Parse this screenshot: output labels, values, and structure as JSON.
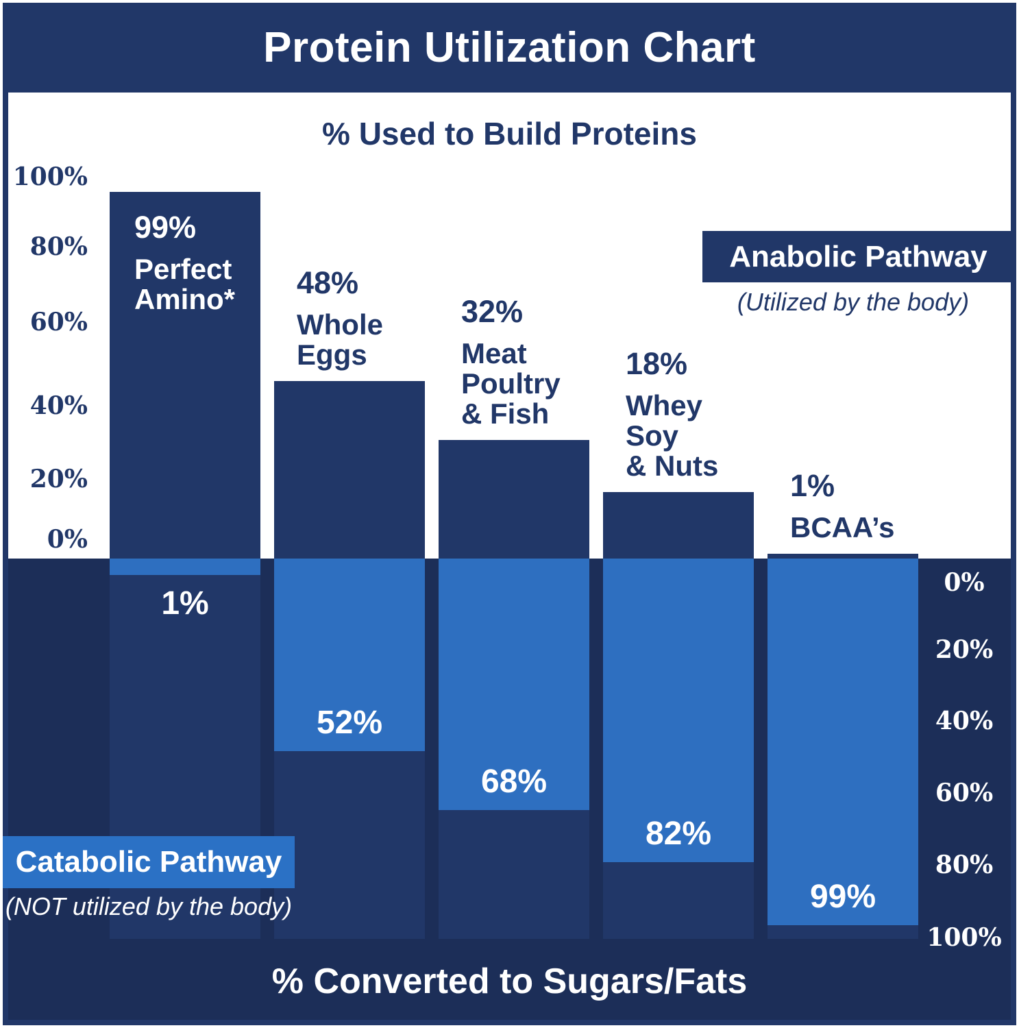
{
  "title": "Protein Utilization Chart",
  "top_axis_title": "% Used to Build Proteins",
  "bottom_axis_title": "% Converted to Sugars/Fats",
  "legend": {
    "anabolic": {
      "label": "Anabolic Pathway",
      "caption": "(Utilized by the body)"
    },
    "catabolic": {
      "label": "Catabolic Pathway",
      "caption": "(NOT utilized by the body)"
    }
  },
  "colors": {
    "navy": "#213768",
    "bottom_background_navy": "#1C2E58",
    "light_blue": "#2E6FC0",
    "catabolic_box_blue": "#2B71C5",
    "white": "#FFFFFF"
  },
  "chart_data": {
    "type": "bar",
    "subtype": "diverging-vertical",
    "title": "Protein Utilization Chart",
    "top_half_label": "% Used to Build Proteins",
    "bottom_half_label": "% Converted to Sugars/Fats",
    "grid": false,
    "categories": [
      "Perfect Amino*",
      "Whole Eggs",
      "Meat Poultry & Fish",
      "Whey Soy & Nuts",
      "BCAA’s"
    ],
    "series": [
      {
        "name": "Anabolic Pathway (Utilized by the body)",
        "values": [
          99,
          48,
          32,
          18,
          1
        ]
      },
      {
        "name": "Catabolic Pathway (NOT utilized by the body)",
        "values": [
          1,
          52,
          68,
          82,
          99
        ]
      }
    ],
    "top_axis": {
      "side": "left",
      "ticks": [
        "100%",
        "80%",
        "60%",
        "40%",
        "20%",
        "0%"
      ],
      "range": [
        0,
        100
      ]
    },
    "bottom_axis": {
      "side": "right",
      "ticks": [
        "0%",
        "20%",
        "40%",
        "60%",
        "80%",
        "100%"
      ],
      "range": [
        0,
        100
      ]
    },
    "columns": [
      {
        "pct_label": "99%",
        "name_lines": [
          "Perfect",
          "Amino*"
        ],
        "anabolic": 99,
        "catabolic": 1,
        "catabolic_label": "1%"
      },
      {
        "pct_label": "48%",
        "name_lines": [
          "Whole",
          "Eggs"
        ],
        "anabolic": 48,
        "catabolic": 52,
        "catabolic_label": "52%"
      },
      {
        "pct_label": "32%",
        "name_lines": [
          "Meat",
          "Poultry",
          "& Fish"
        ],
        "anabolic": 32,
        "catabolic": 68,
        "catabolic_label": "68%"
      },
      {
        "pct_label": "18%",
        "name_lines": [
          "Whey",
          "Soy",
          "& Nuts"
        ],
        "anabolic": 18,
        "catabolic": 82,
        "catabolic_label": "82%"
      },
      {
        "pct_label": "1%",
        "name_lines": [
          "BCAA’s"
        ],
        "anabolic": 1,
        "catabolic": 99,
        "catabolic_label": "99%"
      }
    ],
    "legend_position": "anabolic top-right, catabolic bottom-left"
  }
}
